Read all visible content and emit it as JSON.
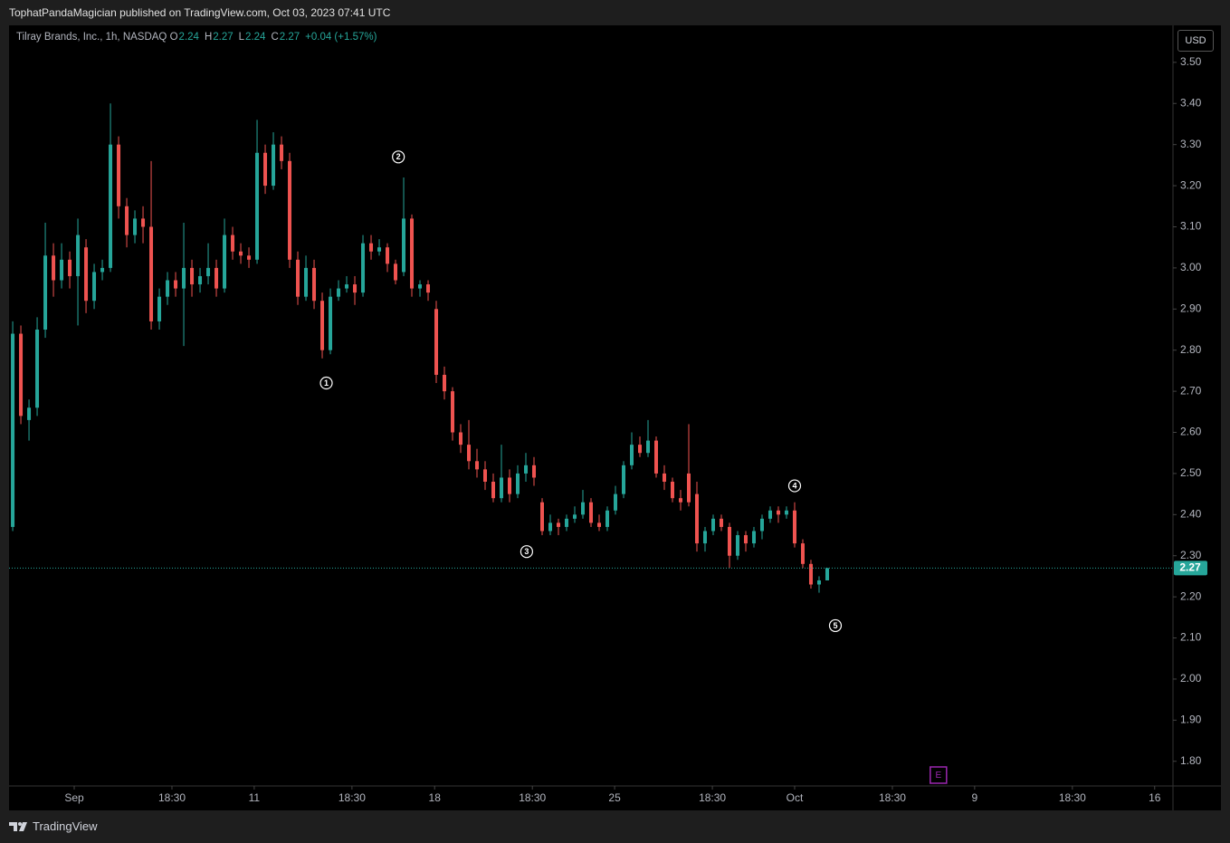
{
  "header": {
    "text": "TophatPandaMagician published on TradingView.com, Oct 03, 2023 07:41 UTC"
  },
  "legend": {
    "symbol": "Tilray Brands, Inc., 1h, NASDAQ",
    "o_label": "O",
    "open": 2.24,
    "h_label": "H",
    "high": 2.27,
    "l_label": "L",
    "low": 2.24,
    "c_label": "C",
    "close": 2.27,
    "change": "+0.04 (+1.57%)"
  },
  "currency": "USD",
  "footer": {
    "brand": "TradingView"
  },
  "chart_data": {
    "type": "candlestick",
    "up_color": "#26a69a",
    "down_color": "#ef5350",
    "x": [
      0,
      2,
      4,
      6,
      8,
      10,
      12,
      14,
      16,
      18,
      20,
      22,
      24,
      26,
      28,
      30,
      32,
      34,
      36,
      38,
      40,
      42,
      44,
      46,
      48,
      50,
      52,
      54,
      56,
      58,
      60,
      62,
      64,
      66,
      68,
      70,
      72,
      74,
      76,
      78,
      80,
      82,
      84,
      86,
      88,
      90,
      92,
      94,
      96,
      98,
      100,
      102,
      104,
      106,
      108,
      110,
      112,
      114,
      116,
      118,
      120,
      122,
      124,
      126,
      128,
      130,
      132,
      134,
      136,
      138,
      140,
      142,
      144,
      146,
      148,
      150,
      152,
      154,
      156,
      158,
      160,
      162,
      164,
      166,
      168,
      170,
      172,
      174,
      176,
      178,
      180,
      182,
      184,
      186,
      188,
      190,
      192,
      194,
      196,
      198,
      200
    ],
    "open": [
      2.37,
      2.84,
      2.63,
      2.66,
      2.85,
      3.03,
      2.97,
      3.02,
      2.98,
      3.05,
      2.92,
      2.99,
      3.0,
      3.3,
      3.15,
      3.08,
      3.12,
      3.1,
      2.87,
      2.93,
      2.97,
      2.95,
      3.0,
      2.96,
      2.98,
      3.0,
      2.95,
      3.08,
      3.04,
      3.03,
      3.02,
      3.28,
      3.2,
      3.3,
      3.26,
      3.02,
      2.93,
      3.0,
      2.92,
      2.8,
      2.93,
      2.95,
      2.96,
      2.94,
      3.06,
      3.04,
      3.05,
      3.01,
      2.99,
      3.12,
      2.95,
      2.96,
      2.9,
      2.74,
      2.7,
      2.6,
      2.57,
      2.53,
      2.51,
      2.48,
      2.44,
      2.49,
      2.45,
      2.5,
      2.52,
      2.43,
      2.36,
      2.38,
      2.37,
      2.39,
      2.4,
      2.43,
      2.38,
      2.37,
      2.41,
      2.45,
      2.52,
      2.57,
      2.55,
      2.58,
      2.5,
      2.48,
      2.44,
      2.5,
      2.45,
      2.33,
      2.36,
      2.39,
      2.37,
      2.3,
      2.35,
      2.33,
      2.36,
      2.39,
      2.41,
      2.4,
      2.41,
      2.33,
      2.28,
      2.23,
      2.24
    ],
    "high": [
      2.87,
      2.86,
      2.68,
      2.88,
      3.11,
      3.06,
      3.06,
      3.04,
      3.12,
      3.07,
      3.01,
      3.02,
      3.4,
      3.32,
      3.17,
      3.14,
      3.15,
      3.26,
      2.95,
      2.99,
      2.99,
      3.11,
      3.02,
      3.0,
      3.06,
      3.02,
      3.12,
      3.1,
      3.06,
      3.05,
      3.36,
      3.3,
      3.33,
      3.32,
      3.28,
      3.04,
      3.03,
      3.02,
      2.94,
      2.95,
      2.97,
      2.98,
      2.98,
      3.08,
      3.08,
      3.07,
      3.06,
      3.02,
      3.22,
      3.13,
      2.97,
      2.97,
      2.92,
      2.76,
      2.71,
      2.62,
      2.63,
      2.56,
      2.53,
      2.5,
      2.57,
      2.51,
      2.52,
      2.55,
      2.54,
      2.44,
      2.4,
      2.39,
      2.4,
      2.42,
      2.46,
      2.44,
      2.4,
      2.42,
      2.47,
      2.53,
      2.6,
      2.59,
      2.63,
      2.59,
      2.52,
      2.49,
      2.46,
      2.62,
      2.48,
      2.37,
      2.4,
      2.4,
      2.38,
      2.36,
      2.36,
      2.37,
      2.4,
      2.42,
      2.42,
      2.42,
      2.43,
      2.34,
      2.29,
      2.25,
      2.27
    ],
    "low": [
      2.36,
      2.62,
      2.58,
      2.64,
      2.83,
      2.93,
      2.95,
      2.95,
      2.86,
      2.89,
      2.9,
      2.97,
      2.99,
      3.12,
      3.05,
      3.06,
      3.06,
      2.85,
      2.85,
      2.91,
      2.93,
      2.81,
      2.93,
      2.94,
      2.96,
      2.93,
      2.94,
      3.02,
      3.01,
      3.0,
      3.01,
      3.18,
      3.19,
      3.24,
      3.0,
      2.91,
      2.92,
      2.9,
      2.78,
      2.79,
      2.92,
      2.94,
      2.91,
      2.93,
      3.02,
      3.03,
      2.99,
      2.96,
      2.98,
      2.93,
      2.93,
      2.92,
      2.72,
      2.68,
      2.58,
      2.55,
      2.51,
      2.49,
      2.46,
      2.43,
      2.43,
      2.43,
      2.44,
      2.48,
      2.47,
      2.35,
      2.35,
      2.35,
      2.36,
      2.38,
      2.39,
      2.37,
      2.36,
      2.36,
      2.4,
      2.44,
      2.51,
      2.54,
      2.54,
      2.49,
      2.46,
      2.43,
      2.41,
      2.42,
      2.31,
      2.31,
      2.35,
      2.36,
      2.27,
      2.29,
      2.31,
      2.32,
      2.34,
      2.38,
      2.38,
      2.39,
      2.32,
      2.27,
      2.22,
      2.21,
      2.24
    ],
    "close": [
      2.84,
      2.64,
      2.66,
      2.85,
      3.03,
      2.97,
      3.02,
      2.98,
      3.08,
      2.92,
      2.99,
      3.0,
      3.3,
      3.15,
      3.08,
      3.12,
      3.1,
      2.87,
      2.93,
      2.97,
      2.95,
      3.0,
      2.96,
      2.98,
      3.0,
      2.95,
      3.08,
      3.04,
      3.03,
      3.02,
      3.28,
      3.2,
      3.3,
      3.26,
      3.02,
      2.93,
      3.0,
      2.92,
      2.8,
      2.93,
      2.95,
      2.96,
      2.94,
      3.06,
      3.04,
      3.05,
      3.01,
      2.97,
      3.12,
      2.95,
      2.96,
      2.94,
      2.74,
      2.7,
      2.6,
      2.57,
      2.53,
      2.51,
      2.48,
      2.44,
      2.49,
      2.45,
      2.5,
      2.52,
      2.49,
      2.36,
      2.38,
      2.37,
      2.39,
      2.4,
      2.43,
      2.38,
      2.37,
      2.41,
      2.45,
      2.52,
      2.57,
      2.55,
      2.58,
      2.5,
      2.48,
      2.44,
      2.43,
      2.43,
      2.33,
      2.36,
      2.39,
      2.37,
      2.3,
      2.35,
      2.33,
      2.36,
      2.39,
      2.41,
      2.4,
      2.41,
      2.33,
      2.28,
      2.23,
      2.24,
      2.27
    ],
    "xlim": [
      -0.9,
      284.9
    ],
    "xticks": [
      {
        "value": 15.1,
        "label": "Sep"
      },
      {
        "value": 39.1,
        "label": "18:30"
      },
      {
        "value": 59.3,
        "label": "11"
      },
      {
        "value": 83.3,
        "label": "18:30"
      },
      {
        "value": 103.6,
        "label": "18"
      },
      {
        "value": 127.6,
        "label": "18:30"
      },
      {
        "value": 147.8,
        "label": "25"
      },
      {
        "value": 171.8,
        "label": "18:30"
      },
      {
        "value": 192,
        "label": "Oct"
      },
      {
        "value": 216,
        "label": "18:30"
      },
      {
        "value": 236.2,
        "label": "9"
      },
      {
        "value": 260.2,
        "label": "18:30"
      },
      {
        "value": 280.4,
        "label": "16"
      }
    ],
    "ylim": [
      1.74,
      3.59
    ],
    "yticks": [
      {
        "value": 1.8,
        "label": "1.80"
      },
      {
        "value": 1.9,
        "label": "1.90"
      },
      {
        "value": 2.0,
        "label": "2.00"
      },
      {
        "value": 2.1,
        "label": "2.10"
      },
      {
        "value": 2.2,
        "label": "2.20"
      },
      {
        "value": 2.3,
        "label": "2.30"
      },
      {
        "value": 2.4,
        "label": "2.40"
      },
      {
        "value": 2.5,
        "label": "2.50"
      },
      {
        "value": 2.6,
        "label": "2.60"
      },
      {
        "value": 2.7,
        "label": "2.70"
      },
      {
        "value": 2.8,
        "label": "2.80"
      },
      {
        "value": 2.9,
        "label": "2.90"
      },
      {
        "value": 3.0,
        "label": "3.00"
      },
      {
        "value": 3.1,
        "label": "3.10"
      },
      {
        "value": 3.2,
        "label": "3.20"
      },
      {
        "value": 3.3,
        "label": "3.30"
      },
      {
        "value": 3.4,
        "label": "3.40"
      },
      {
        "value": 3.5,
        "label": "3.50"
      }
    ],
    "last_price": 2.27,
    "annotations": [
      {
        "text": "1",
        "x": 77,
        "y": 2.72
      },
      {
        "text": "2",
        "x": 94.7,
        "y": 3.27
      },
      {
        "text": "3",
        "x": 126.2,
        "y": 2.31
      },
      {
        "text": "4",
        "x": 192,
        "y": 2.47
      },
      {
        "text": "5",
        "x": 202,
        "y": 2.13
      }
    ],
    "event": {
      "text": "E",
      "x": 227.3,
      "color": "#9c27b0"
    }
  }
}
